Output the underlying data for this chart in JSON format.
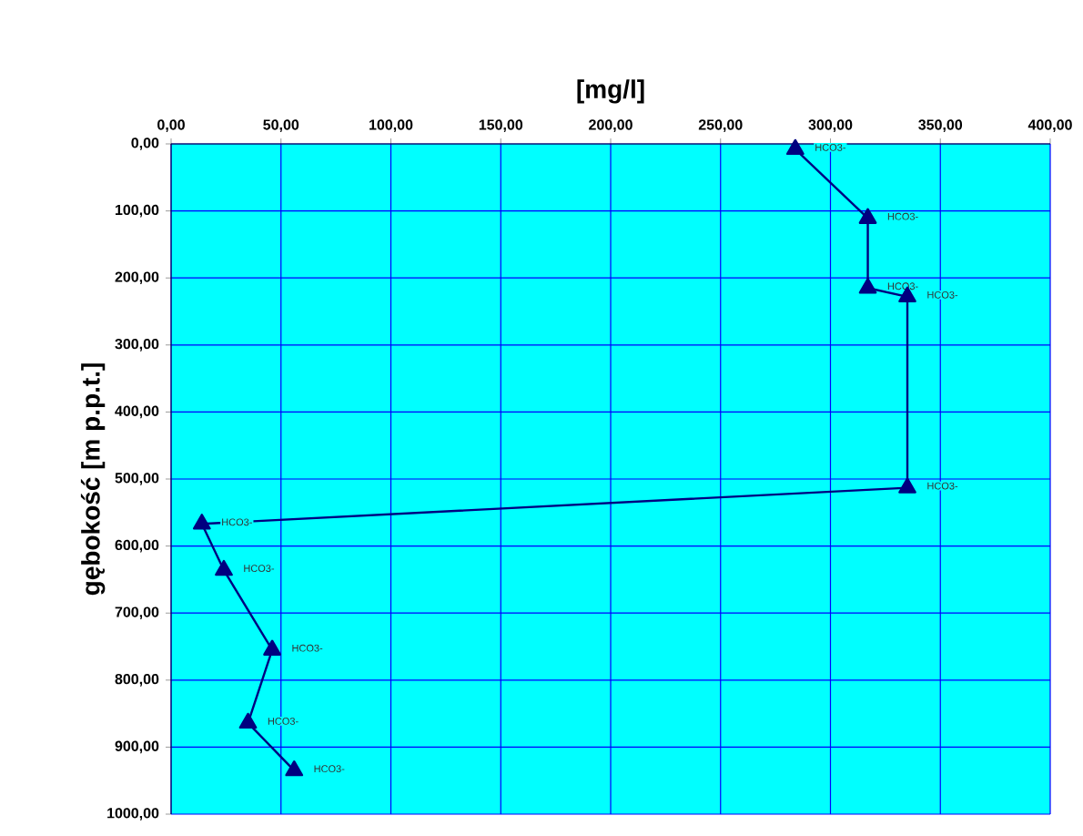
{
  "chart_data": {
    "type": "line",
    "xlabel": "[mg/l]",
    "ylabel": "gębokość [m p.p.t.]",
    "xlim": [
      0,
      400
    ],
    "ylim": [
      1000,
      0
    ],
    "xticks": [
      {
        "value": 0,
        "label": "0,00"
      },
      {
        "value": 50,
        "label": "50,00"
      },
      {
        "value": 100,
        "label": "100,00"
      },
      {
        "value": 150,
        "label": "150,00"
      },
      {
        "value": 200,
        "label": "200,00"
      },
      {
        "value": 250,
        "label": "250,00"
      },
      {
        "value": 300,
        "label": "300,00"
      },
      {
        "value": 350,
        "label": "350,00"
      },
      {
        "value": 400,
        "label": "400,00"
      }
    ],
    "yticks": [
      {
        "value": 0,
        "label": "0,00"
      },
      {
        "value": 100,
        "label": "100,00"
      },
      {
        "value": 200,
        "label": "200,00"
      },
      {
        "value": 300,
        "label": "300,00"
      },
      {
        "value": 400,
        "label": "400,00"
      },
      {
        "value": 500,
        "label": "500,00"
      },
      {
        "value": 600,
        "label": "600,00"
      },
      {
        "value": 700,
        "label": "700,00"
      },
      {
        "value": 800,
        "label": "800,00"
      },
      {
        "value": 900,
        "label": "900,00"
      },
      {
        "value": 1000,
        "label": "1000,00"
      }
    ],
    "grid": true,
    "marker": "triangle",
    "line_style": "solid",
    "series": [
      {
        "color": "#000080",
        "x": [
          284,
          317,
          317,
          335,
          335,
          14,
          24,
          46,
          35,
          56
        ],
        "values": [
          8,
          111,
          215,
          228,
          513,
          567,
          636,
          755,
          864,
          935
        ],
        "value_labels": [
          "HCO3-",
          "HCO3-",
          "HCO3-",
          "HCO3-",
          "HCO3-",
          "HCO3-",
          "HCO3-",
          "HCO3-",
          "HCO3-",
          "HCO3-"
        ]
      }
    ]
  }
}
